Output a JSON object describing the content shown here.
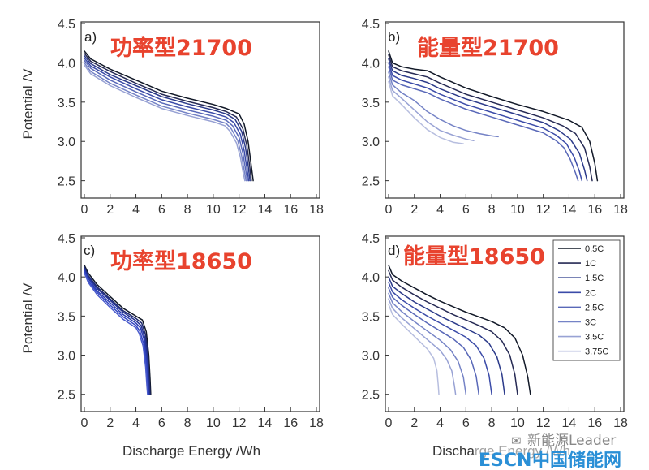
{
  "figure": {
    "xlabel": "Discharge Energy /Wh",
    "ylabel": "Potential /V",
    "xticks": [
      "0",
      "2",
      "4",
      "6",
      "8",
      "10",
      "12",
      "14",
      "16",
      "18"
    ],
    "yticks": [
      "2.5",
      "3.0",
      "3.5",
      "4.0",
      "4.5"
    ],
    "xlim": [
      0,
      18
    ],
    "ylim": [
      2.3,
      4.5
    ]
  },
  "legend": {
    "entries": [
      "0.5C",
      "1C",
      "1.5C",
      "2C",
      "2.5C",
      "3C",
      "3.5C",
      "3.75C"
    ],
    "colors": [
      "#111827",
      "#262a54",
      "#2b3a8a",
      "#3b4ba8",
      "#5968b8",
      "#7583c6",
      "#98a2d4",
      "#b7bedf"
    ]
  },
  "chart_data": [
    {
      "type": "line",
      "panel": "a)",
      "title": "功率型21700",
      "xlabel": "Discharge Energy /Wh",
      "ylabel": "Potential /V",
      "xlim": [
        0,
        18
      ],
      "ylim": [
        2.3,
        4.5
      ],
      "series": [
        {
          "color": "#111827",
          "x": [
            0,
            0.5,
            2,
            4,
            6,
            8,
            10,
            11,
            12,
            12.4,
            12.7,
            12.9,
            13.1
          ],
          "y": [
            4.15,
            4.05,
            3.92,
            3.78,
            3.64,
            3.55,
            3.47,
            3.42,
            3.35,
            3.22,
            3.0,
            2.75,
            2.5
          ]
        },
        {
          "color": "#262a54",
          "x": [
            0,
            0.5,
            2,
            4,
            6,
            8,
            10,
            11,
            11.8,
            12.3,
            12.6,
            12.8,
            12.95
          ],
          "y": [
            4.12,
            4.02,
            3.89,
            3.74,
            3.6,
            3.51,
            3.43,
            3.38,
            3.31,
            3.16,
            2.95,
            2.72,
            2.5
          ]
        },
        {
          "color": "#2b3a8a",
          "x": [
            0,
            0.5,
            2,
            4,
            6,
            8,
            10,
            11,
            11.7,
            12.2,
            12.5,
            12.7,
            12.85
          ],
          "y": [
            4.09,
            3.99,
            3.85,
            3.71,
            3.57,
            3.48,
            3.4,
            3.35,
            3.28,
            3.13,
            2.92,
            2.7,
            2.5
          ]
        },
        {
          "color": "#3b4ba8",
          "x": [
            0,
            0.5,
            2,
            4,
            6,
            8,
            10,
            11,
            11.6,
            12.1,
            12.4,
            12.6,
            12.75
          ],
          "y": [
            4.06,
            3.96,
            3.82,
            3.67,
            3.53,
            3.44,
            3.36,
            3.31,
            3.24,
            3.09,
            2.88,
            2.67,
            2.5
          ]
        },
        {
          "color": "#5968b8",
          "x": [
            0,
            0.5,
            2,
            4,
            6,
            8,
            10,
            11,
            11.5,
            12.0,
            12.3,
            12.5,
            12.65
          ],
          "y": [
            4.03,
            3.93,
            3.78,
            3.63,
            3.49,
            3.4,
            3.32,
            3.27,
            3.2,
            3.05,
            2.85,
            2.65,
            2.5
          ]
        },
        {
          "color": "#7583c6",
          "x": [
            0,
            0.5,
            2,
            4,
            6,
            8,
            10,
            11,
            11.4,
            11.9,
            12.2,
            12.4,
            12.55
          ],
          "y": [
            4.0,
            3.89,
            3.74,
            3.59,
            3.45,
            3.36,
            3.28,
            3.23,
            3.16,
            3.01,
            2.82,
            2.63,
            2.5
          ]
        },
        {
          "color": "#98a2d4",
          "x": [
            0,
            0.5,
            2,
            4,
            6,
            8,
            10,
            10.9,
            11.3,
            11.8,
            12.1,
            12.3,
            12.45
          ],
          "y": [
            3.97,
            3.86,
            3.71,
            3.56,
            3.42,
            3.33,
            3.25,
            3.2,
            3.13,
            2.98,
            2.8,
            2.62,
            2.5
          ]
        }
      ]
    },
    {
      "type": "line",
      "panel": "b)",
      "title": "能量型21700",
      "xlabel": "Discharge Energy /Wh",
      "ylabel": "Potential /V",
      "xlim": [
        0,
        18
      ],
      "ylim": [
        2.3,
        4.5
      ],
      "series": [
        {
          "color": "#111827",
          "x": [
            0,
            0.3,
            1,
            2,
            3,
            4,
            6,
            8,
            10,
            12,
            14,
            15,
            15.6,
            16.0,
            16.2
          ],
          "y": [
            4.15,
            4.0,
            3.95,
            3.92,
            3.9,
            3.82,
            3.68,
            3.57,
            3.47,
            3.38,
            3.27,
            3.18,
            3.0,
            2.72,
            2.5
          ]
        },
        {
          "color": "#262a54",
          "x": [
            0,
            0.3,
            1,
            2,
            3,
            4,
            6,
            8,
            10,
            12,
            13.5,
            14.5,
            15.2,
            15.6,
            15.8
          ],
          "y": [
            4.1,
            3.95,
            3.9,
            3.86,
            3.82,
            3.74,
            3.6,
            3.5,
            3.4,
            3.3,
            3.2,
            3.1,
            2.92,
            2.68,
            2.5
          ]
        },
        {
          "color": "#2b3a8a",
          "x": [
            0,
            0.3,
            1,
            2,
            3,
            4,
            6,
            8,
            10,
            12,
            13.2,
            14.1,
            14.8,
            15.2,
            15.4
          ],
          "y": [
            4.05,
            3.9,
            3.84,
            3.8,
            3.75,
            3.67,
            3.54,
            3.44,
            3.34,
            3.24,
            3.14,
            3.03,
            2.85,
            2.64,
            2.5
          ]
        },
        {
          "color": "#3b4ba8",
          "x": [
            0,
            0.3,
            1,
            2,
            3,
            4,
            6,
            8,
            10,
            12,
            13.0,
            13.8,
            14.4,
            14.8,
            15.0
          ],
          "y": [
            4.0,
            3.84,
            3.78,
            3.73,
            3.68,
            3.6,
            3.47,
            3.37,
            3.27,
            3.17,
            3.08,
            2.97,
            2.8,
            2.62,
            2.5
          ]
        },
        {
          "color": "#5968b8",
          "x": [
            0,
            0.3,
            1,
            2,
            3,
            4,
            6,
            8,
            10,
            12,
            13.0,
            13.6,
            14.1,
            14.5,
            14.7
          ],
          "y": [
            3.95,
            3.78,
            3.72,
            3.67,
            3.62,
            3.54,
            3.41,
            3.31,
            3.21,
            3.11,
            3.01,
            2.92,
            2.77,
            2.6,
            2.5
          ]
        },
        {
          "color": "#7583c6",
          "x": [
            0,
            0.3,
            1,
            2,
            3,
            4,
            5,
            6,
            7,
            8,
            8.5
          ],
          "y": [
            3.88,
            3.72,
            3.62,
            3.52,
            3.38,
            3.28,
            3.2,
            3.14,
            3.1,
            3.07,
            3.06
          ]
        },
        {
          "color": "#98a2d4",
          "x": [
            0,
            0.3,
            1,
            2,
            3,
            4,
            5,
            6,
            6.6
          ],
          "y": [
            3.82,
            3.65,
            3.55,
            3.4,
            3.25,
            3.14,
            3.08,
            3.03,
            3.01
          ]
        },
        {
          "color": "#b7bedf",
          "x": [
            0,
            0.3,
            1,
            2,
            3,
            4,
            5,
            5.8
          ],
          "y": [
            3.76,
            3.58,
            3.47,
            3.3,
            3.15,
            3.05,
            2.99,
            2.97
          ]
        }
      ]
    },
    {
      "type": "line",
      "panel": "c)",
      "title": "功率型18650",
      "xlabel": "Discharge Energy /Wh",
      "ylabel": "Potential /V",
      "xlim": [
        0,
        18
      ],
      "ylim": [
        2.3,
        4.5
      ],
      "series": [
        {
          "color": "#111827",
          "x": [
            0,
            0.3,
            1,
            2,
            3,
            4,
            4.5,
            4.8,
            5.0,
            5.1,
            5.15
          ],
          "y": [
            4.15,
            4.05,
            3.9,
            3.75,
            3.6,
            3.5,
            3.45,
            3.3,
            3.0,
            2.7,
            2.5
          ]
        },
        {
          "color": "#1f2a6e",
          "x": [
            0,
            0.3,
            1,
            2,
            3,
            4,
            4.45,
            4.75,
            4.95,
            5.05,
            5.1
          ],
          "y": [
            4.13,
            4.02,
            3.87,
            3.72,
            3.57,
            3.47,
            3.41,
            3.26,
            2.97,
            2.68,
            2.5
          ]
        },
        {
          "color": "#233191",
          "x": [
            0,
            0.3,
            1,
            2,
            3,
            4,
            4.4,
            4.7,
            4.9,
            5.0,
            5.05
          ],
          "y": [
            4.11,
            4.0,
            3.85,
            3.7,
            3.55,
            3.44,
            3.38,
            3.22,
            2.94,
            2.66,
            2.5
          ]
        },
        {
          "color": "#2a3cb0",
          "x": [
            0,
            0.3,
            1,
            2,
            3,
            4,
            4.35,
            4.65,
            4.85,
            4.95,
            5.0
          ],
          "y": [
            4.09,
            3.98,
            3.82,
            3.67,
            3.52,
            3.41,
            3.35,
            3.19,
            2.91,
            2.64,
            2.5
          ]
        },
        {
          "color": "#3447c4",
          "x": [
            0,
            0.3,
            1,
            2,
            3,
            4,
            4.3,
            4.6,
            4.8,
            4.9,
            4.95
          ],
          "y": [
            4.07,
            3.95,
            3.8,
            3.64,
            3.49,
            3.38,
            3.31,
            3.15,
            2.88,
            2.62,
            2.5
          ]
        },
        {
          "color": "#4a5bcc",
          "x": [
            0,
            0.3,
            1,
            2,
            3,
            4,
            4.25,
            4.55,
            4.75,
            4.85,
            4.9
          ],
          "y": [
            4.05,
            3.93,
            3.77,
            3.61,
            3.46,
            3.35,
            3.28,
            3.12,
            2.85,
            2.6,
            2.5
          ]
        }
      ]
    },
    {
      "type": "line",
      "panel": "d)",
      "title": "能量型18650",
      "xlabel": "Discharge Energy /Wh",
      "ylabel": "Potential /V",
      "xlim": [
        0,
        18
      ],
      "ylim": [
        2.3,
        4.5
      ],
      "series": [
        {
          "color": "#111827",
          "x": [
            0,
            0.3,
            1,
            2,
            3,
            4,
            5,
            6,
            7,
            8,
            9,
            9.8,
            10.4,
            10.8,
            11.0
          ],
          "y": [
            4.15,
            4.03,
            3.95,
            3.86,
            3.77,
            3.69,
            3.62,
            3.55,
            3.49,
            3.43,
            3.35,
            3.22,
            3.0,
            2.72,
            2.5
          ]
        },
        {
          "color": "#262a54",
          "x": [
            0,
            0.3,
            1,
            2,
            3,
            4,
            5,
            6,
            7,
            8,
            8.8,
            9.4,
            9.8,
            10.0
          ],
          "y": [
            4.08,
            3.96,
            3.87,
            3.77,
            3.68,
            3.6,
            3.52,
            3.45,
            3.38,
            3.3,
            3.18,
            3.0,
            2.75,
            2.5
          ]
        },
        {
          "color": "#2b3a8a",
          "x": [
            0,
            0.3,
            1,
            2,
            3,
            4,
            5,
            6,
            7,
            7.8,
            8.4,
            8.8,
            9.0
          ],
          "y": [
            4.0,
            3.88,
            3.79,
            3.68,
            3.59,
            3.5,
            3.42,
            3.34,
            3.26,
            3.15,
            2.98,
            2.75,
            2.5
          ]
        },
        {
          "color": "#3b4ba8",
          "x": [
            0,
            0.3,
            1,
            2,
            3,
            4,
            5,
            6,
            6.8,
            7.4,
            7.8,
            8.0
          ],
          "y": [
            3.93,
            3.81,
            3.71,
            3.6,
            3.5,
            3.41,
            3.32,
            3.23,
            3.12,
            2.96,
            2.74,
            2.5
          ]
        },
        {
          "color": "#5968b8",
          "x": [
            0,
            0.3,
            1,
            2,
            3,
            4,
            5,
            5.8,
            6.4,
            6.8,
            7.0
          ],
          "y": [
            3.86,
            3.74,
            3.64,
            3.52,
            3.41,
            3.31,
            3.21,
            3.1,
            2.94,
            2.73,
            2.5
          ]
        },
        {
          "color": "#7583c6",
          "x": [
            0,
            0.3,
            1,
            2,
            3,
            4,
            4.8,
            5.4,
            5.8,
            6.0
          ],
          "y": [
            3.79,
            3.67,
            3.56,
            3.43,
            3.31,
            3.19,
            3.07,
            2.92,
            2.72,
            2.5
          ]
        },
        {
          "color": "#98a2d4",
          "x": [
            0,
            0.3,
            1,
            2,
            3,
            4,
            4.5,
            4.9,
            5.1,
            5.2
          ],
          "y": [
            3.72,
            3.6,
            3.48,
            3.34,
            3.2,
            3.06,
            2.95,
            2.8,
            2.62,
            2.5
          ]
        },
        {
          "color": "#b7bedf",
          "x": [
            0,
            0.3,
            1,
            2,
            3,
            3.5,
            3.75,
            3.85,
            3.9
          ],
          "y": [
            3.65,
            3.52,
            3.4,
            3.24,
            3.08,
            2.96,
            2.8,
            2.62,
            2.5
          ]
        }
      ]
    }
  ],
  "watermark": {
    "account": "新能源Leader",
    "brand_latin": "ESCN",
    "brand_cn": "中国储能网"
  }
}
